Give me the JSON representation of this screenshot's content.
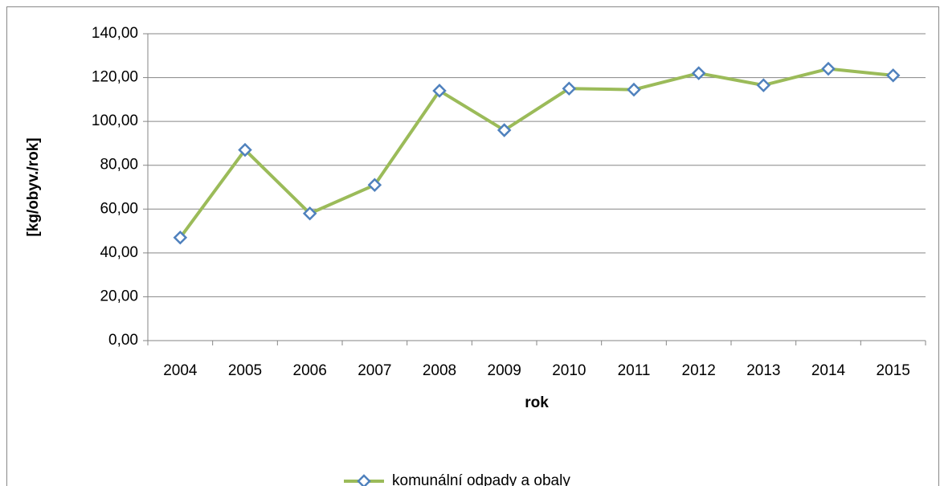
{
  "chart_data": {
    "type": "line",
    "x_label": "rok",
    "y_label": "[kg/obyv./rok]",
    "categories": [
      "2004",
      "2005",
      "2006",
      "2007",
      "2008",
      "2009",
      "2010",
      "2011",
      "2012",
      "2013",
      "2014",
      "2015"
    ],
    "series": [
      {
        "name": "komunální odpady a obaly",
        "color": "#9bbb59",
        "marker_color": "#4f81bd",
        "values": [
          47,
          87,
          58,
          71,
          114,
          96,
          115,
          114.5,
          122,
          116.5,
          124,
          121
        ]
      }
    ],
    "ylim": [
      0,
      140
    ],
    "yticks": [
      {
        "value": 0,
        "label": "0,00"
      },
      {
        "value": 20,
        "label": "20,00"
      },
      {
        "value": 40,
        "label": "40,00"
      },
      {
        "value": 60,
        "label": "60,00"
      },
      {
        "value": 80,
        "label": "80,00"
      },
      {
        "value": 100,
        "label": "100,00"
      },
      {
        "value": 120,
        "label": "120,00"
      },
      {
        "value": 140,
        "label": "140,00"
      }
    ],
    "grid": true,
    "legend": "bottom"
  }
}
